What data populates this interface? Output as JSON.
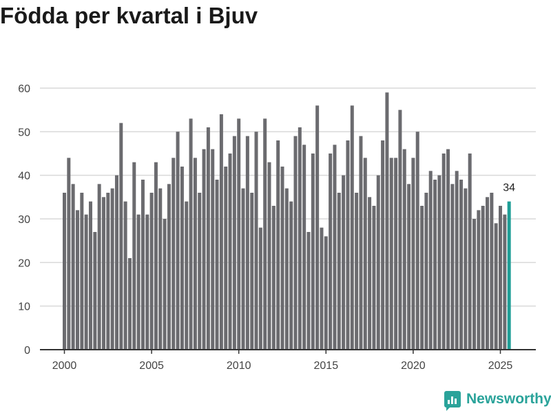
{
  "chart_data": {
    "type": "bar",
    "title": "Födda per kvartal i Bjuv",
    "xlabel": "",
    "ylabel": "",
    "ylim": [
      0,
      60
    ],
    "yticks": [
      0,
      10,
      20,
      30,
      40,
      50,
      60
    ],
    "xticks": [
      "2000",
      "2005",
      "2010",
      "2015",
      "2020",
      "2025"
    ],
    "start": "2000 Q1",
    "end": "2025 Q3",
    "values": [
      36,
      44,
      38,
      32,
      36,
      31,
      34,
      27,
      38,
      35,
      36,
      37,
      40,
      52,
      34,
      21,
      43,
      31,
      39,
      31,
      36,
      43,
      37,
      30,
      38,
      44,
      50,
      42,
      34,
      53,
      44,
      36,
      46,
      51,
      46,
      39,
      54,
      42,
      45,
      49,
      53,
      37,
      49,
      36,
      50,
      28,
      53,
      43,
      33,
      48,
      42,
      37,
      34,
      49,
      51,
      47,
      27,
      45,
      56,
      28,
      26,
      45,
      47,
      36,
      40,
      48,
      56,
      36,
      49,
      44,
      35,
      33,
      40,
      48,
      59,
      44,
      44,
      55,
      46,
      38,
      44,
      50,
      33,
      36,
      41,
      39,
      40,
      45,
      46,
      38,
      41,
      39,
      37,
      45,
      30,
      32,
      33,
      35,
      36,
      29,
      33,
      31,
      34
    ],
    "highlight_label": "34",
    "colors": {
      "bar": "#6b6b6f",
      "highlight": "#1f9e96",
      "grid": "#d9d9d9",
      "axis": "#333333",
      "text": "#444444"
    }
  },
  "brand": {
    "name": "Newsworthy"
  }
}
